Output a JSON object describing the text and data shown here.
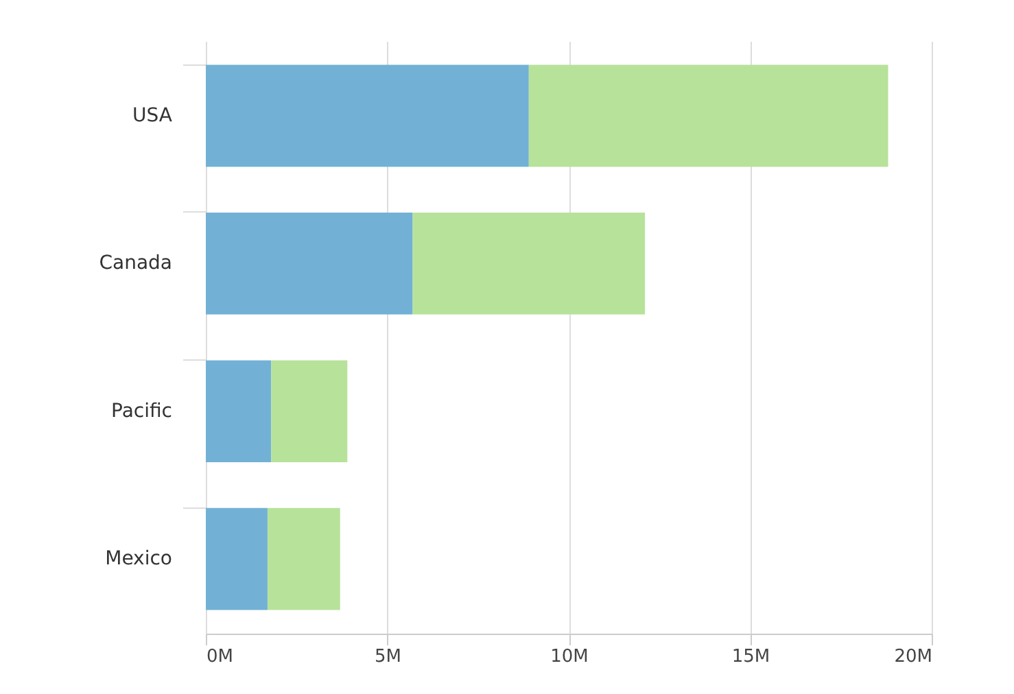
{
  "chart_data": {
    "type": "bar",
    "orientation": "horizontal",
    "stacked": true,
    "categories": [
      "USA",
      "Canada",
      "Pacific",
      "Mexico"
    ],
    "series": [
      {
        "color": "#72b1d5",
        "values": [
          8.9,
          5.7,
          1.8,
          1.7
        ]
      },
      {
        "color": "#b7e29a",
        "values": [
          9.9,
          6.4,
          2.1,
          2.0
        ]
      }
    ],
    "xlim": [
      0,
      20
    ],
    "xticks": [
      {
        "value": 0,
        "label": "0M"
      },
      {
        "value": 5,
        "label": "5M"
      },
      {
        "value": 10,
        "label": "10M"
      },
      {
        "value": 15,
        "label": "15M"
      },
      {
        "value": 20,
        "label": "20M"
      }
    ],
    "grid": "x",
    "legend": false
  }
}
